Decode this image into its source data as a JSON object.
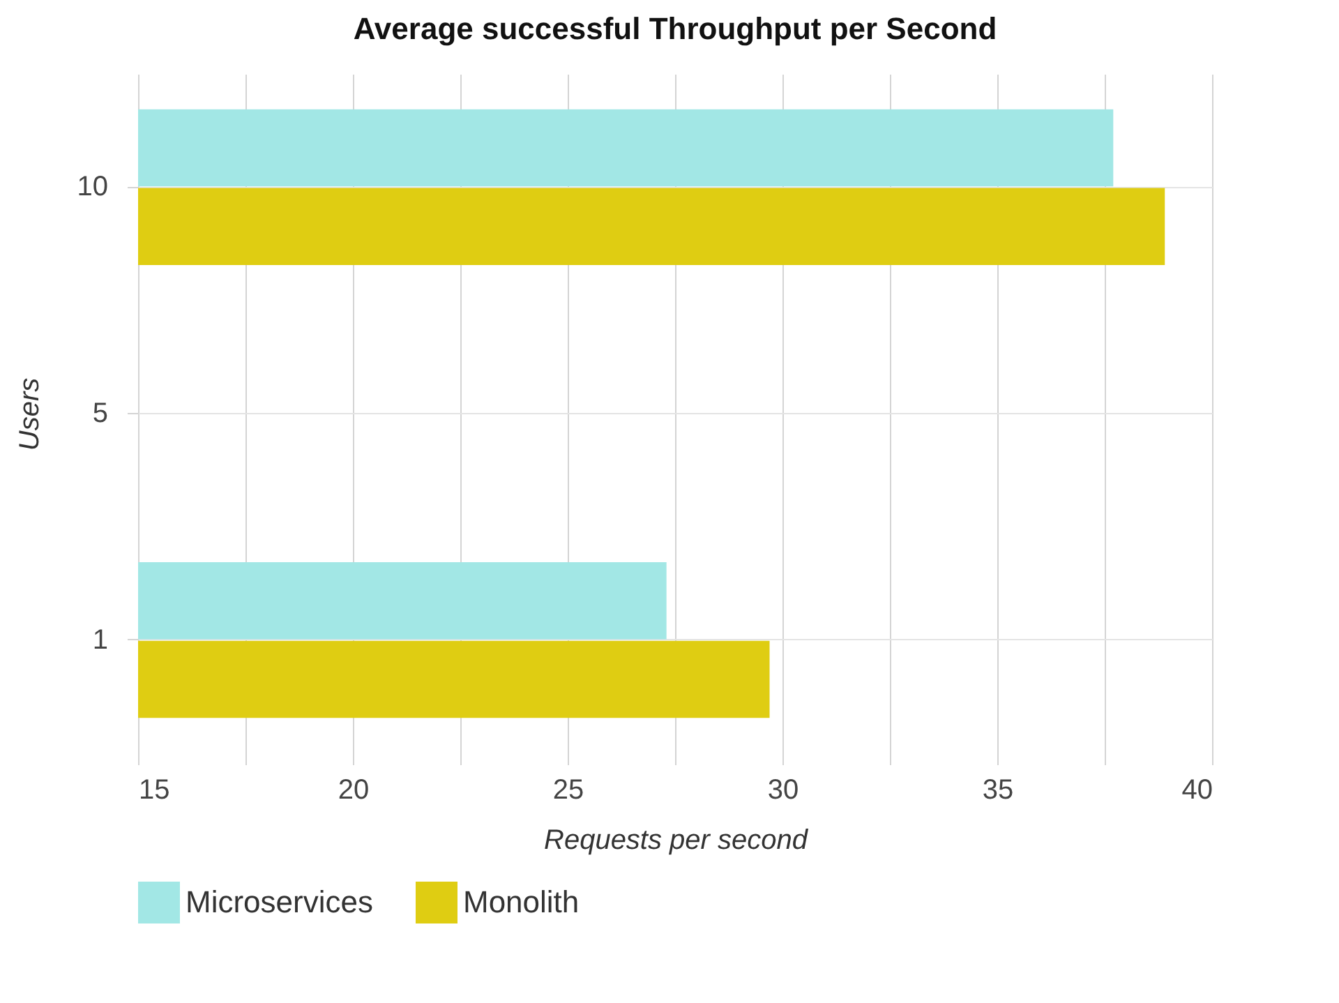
{
  "chart_data": {
    "type": "bar",
    "orientation": "horizontal",
    "title": "Average successful Throughput per Second",
    "xlabel": "Requests per second",
    "ylabel": "Users",
    "categories": [
      "10",
      "5",
      "1"
    ],
    "series": [
      {
        "name": "Microservices",
        "color": "#a2e7e5",
        "values": [
          37.7,
          null,
          27.3
        ]
      },
      {
        "name": "Monolith",
        "color": "#dfcd12",
        "values": [
          38.9,
          null,
          29.7
        ]
      }
    ],
    "xlim": [
      15,
      40
    ],
    "xticks": [
      15,
      {
        "value": 17.5,
        "label": null
      },
      20,
      {
        "value": 22.5,
        "label": null
      },
      25,
      {
        "value": 27.5,
        "label": null
      },
      30,
      {
        "value": 32.5,
        "label": null
      },
      35,
      {
        "value": 37.5,
        "label": null
      },
      40
    ],
    "grid": true,
    "legend": "bottom"
  }
}
